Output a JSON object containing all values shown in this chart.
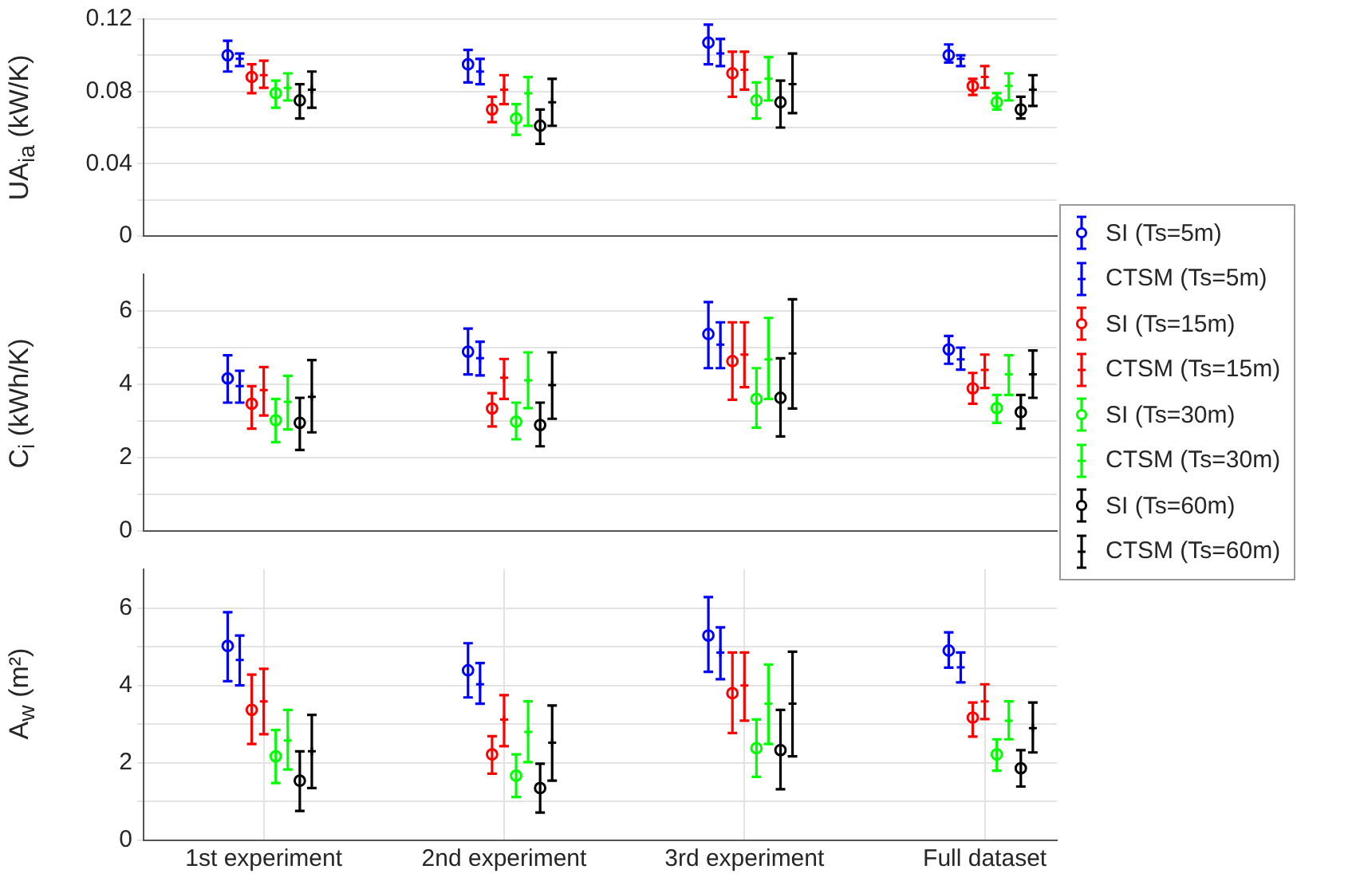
{
  "chart_data": [
    {
      "type": "scatter",
      "ylabel": "UA$_{ia}$ (kW/K)",
      "categories": [
        null,
        null,
        null,
        null
      ],
      "ylim": [
        0,
        0.12
      ],
      "yticks": [
        0,
        {
          "value": 0.02,
          "label": null
        },
        0.04,
        {
          "value": 0.06,
          "label": null
        },
        0.08,
        {
          "value": 0.1,
          "label": null
        },
        0.12
      ],
      "grid": "y",
      "tick_labels": "y",
      "series": [
        {
          "color": "#0000ff",
          "marker": "circle",
          "values": [
            0.1,
            0.095,
            0.107,
            0.1
          ],
          "errors": [
            [
              0.091,
              0.108
            ],
            [
              0.085,
              0.103
            ],
            [
              0.095,
              0.117
            ],
            [
              0.096,
              0.106
            ]
          ]
        },
        {
          "color": "#0000ff",
          "marker": "cross",
          "values": [
            0.098,
            0.091,
            0.101,
            0.098
          ],
          "errors": [
            [
              0.094,
              0.101
            ],
            [
              0.084,
              0.098
            ],
            [
              0.094,
              0.109
            ],
            [
              0.094,
              0.1
            ]
          ]
        },
        {
          "color": "#ff0000",
          "marker": "circle",
          "values": [
            0.088,
            0.07,
            0.09,
            0.083
          ],
          "errors": [
            [
              0.079,
              0.095
            ],
            [
              0.063,
              0.077
            ],
            [
              0.077,
              0.102
            ],
            [
              0.078,
              0.087
            ]
          ]
        },
        {
          "color": "#ff0000",
          "marker": "cross",
          "values": [
            0.089,
            0.081,
            0.092,
            0.088
          ],
          "errors": [
            [
              0.082,
              0.097
            ],
            [
              0.073,
              0.089
            ],
            [
              0.081,
              0.102
            ],
            [
              0.082,
              0.094
            ]
          ]
        },
        {
          "color": "#00ff00",
          "marker": "circle",
          "values": [
            0.079,
            0.065,
            0.075,
            0.074
          ],
          "errors": [
            [
              0.071,
              0.086
            ],
            [
              0.056,
              0.073
            ],
            [
              0.065,
              0.085
            ],
            [
              0.07,
              0.079
            ]
          ]
        },
        {
          "color": "#00ff00",
          "marker": "cross",
          "values": [
            0.082,
            0.079,
            0.087,
            0.083
          ],
          "errors": [
            [
              0.075,
              0.09
            ],
            [
              0.061,
              0.088
            ],
            [
              0.075,
              0.099
            ],
            [
              0.075,
              0.09
            ]
          ]
        },
        {
          "color": "#000000",
          "marker": "circle",
          "values": [
            0.075,
            0.061,
            0.074,
            0.07
          ],
          "errors": [
            [
              0.065,
              0.084
            ],
            [
              0.051,
              0.07
            ],
            [
              0.06,
              0.086
            ],
            [
              0.065,
              0.077
            ]
          ]
        },
        {
          "color": "#000000",
          "marker": "cross",
          "values": [
            0.081,
            0.074,
            0.084,
            0.081
          ],
          "errors": [
            [
              0.071,
              0.091
            ],
            [
              0.061,
              0.087
            ],
            [
              0.068,
              0.101
            ],
            [
              0.072,
              0.089
            ]
          ]
        }
      ]
    },
    {
      "type": "scatter",
      "ylabel": "C$_{i}$ (kWh/K)",
      "categories": [
        null,
        null,
        null,
        null
      ],
      "ylim": [
        0,
        7
      ],
      "yticks": [
        0,
        {
          "value": 1,
          "label": null
        },
        2,
        {
          "value": 3,
          "label": null
        },
        4,
        {
          "value": 5,
          "label": null
        },
        6
      ],
      "grid": "y",
      "tick_labels": "y",
      "legend": "right",
      "series": [
        {
          "name": "SI (Ts=5m)",
          "color": "#0000ff",
          "marker": "circle",
          "values": [
            4.16,
            4.89,
            5.37,
            4.95
          ],
          "errors": [
            [
              3.5,
              4.79
            ],
            [
              4.27,
              5.52
            ],
            [
              4.44,
              6.24
            ],
            [
              4.56,
              5.32
            ]
          ]
        },
        {
          "name": "CTSM (Ts=5m)",
          "color": "#0000ff",
          "marker": "cross",
          "values": [
            3.95,
            4.71,
            5.08,
            4.68
          ],
          "errors": [
            [
              3.5,
              4.37
            ],
            [
              4.24,
              5.16
            ],
            [
              4.44,
              5.69
            ],
            [
              4.4,
              5.0
            ]
          ]
        },
        {
          "name": "SI (Ts=15m)",
          "color": "#ff0000",
          "marker": "circle",
          "values": [
            3.47,
            3.34,
            4.63,
            3.89
          ],
          "errors": [
            [
              2.79,
              3.95
            ],
            [
              2.85,
              3.76
            ],
            [
              3.58,
              5.69
            ],
            [
              3.47,
              4.31
            ]
          ]
        },
        {
          "name": "CTSM (Ts=15m)",
          "color": "#ff0000",
          "marker": "cross",
          "values": [
            3.84,
            4.18,
            4.81,
            4.39
          ],
          "errors": [
            [
              3.15,
              4.47
            ],
            [
              3.6,
              4.69
            ],
            [
              3.92,
              5.69
            ],
            [
              3.9,
              4.81
            ]
          ]
        },
        {
          "name": "SI (Ts=30m)",
          "color": "#00ff00",
          "marker": "circle",
          "values": [
            3.02,
            2.98,
            3.6,
            3.35
          ],
          "errors": [
            [
              2.42,
              3.6
            ],
            [
              2.5,
              3.5
            ],
            [
              2.82,
              4.44
            ],
            [
              2.95,
              3.71
            ]
          ]
        },
        {
          "name": "CTSM (Ts=30m)",
          "color": "#00ff00",
          "marker": "cross",
          "values": [
            3.52,
            4.11,
            4.68,
            4.27
          ],
          "errors": [
            [
              2.77,
              4.23
            ],
            [
              3.35,
              4.87
            ],
            [
              3.6,
              5.81
            ],
            [
              3.71,
              4.79
            ]
          ]
        },
        {
          "name": "SI (Ts=60m)",
          "color": "#000000",
          "marker": "circle",
          "values": [
            2.95,
            2.89,
            3.63,
            3.24
          ],
          "errors": [
            [
              2.21,
              3.63
            ],
            [
              2.31,
              3.5
            ],
            [
              2.58,
              4.71
            ],
            [
              2.79,
              3.71
            ]
          ]
        },
        {
          "name": "CTSM (Ts=60m)",
          "color": "#000000",
          "marker": "cross",
          "values": [
            3.66,
            3.98,
            4.84,
            4.27
          ],
          "errors": [
            [
              2.69,
              4.66
            ],
            [
              3.06,
              4.87
            ],
            [
              3.34,
              6.32
            ],
            [
              3.63,
              4.92
            ]
          ]
        }
      ]
    },
    {
      "type": "scatter",
      "ylabel": "A$_{w}$ (m²)",
      "categories": [
        "1st experiment",
        "2nd experiment",
        "3rd experiment",
        "Full dataset"
      ],
      "ylim": [
        0,
        7
      ],
      "yticks": [
        0,
        {
          "value": 1,
          "label": null
        },
        2,
        {
          "value": 3,
          "label": null
        },
        4,
        {
          "value": 5,
          "label": null
        },
        6
      ],
      "grid": true,
      "series": [
        {
          "color": "#0000ff",
          "marker": "circle",
          "values": [
            5.02,
            4.39,
            5.29,
            4.9
          ],
          "errors": [
            [
              4.11,
              5.89
            ],
            [
              3.69,
              5.09
            ],
            [
              4.35,
              6.28
            ],
            [
              4.46,
              5.37
            ]
          ]
        },
        {
          "color": "#0000ff",
          "marker": "cross",
          "values": [
            4.66,
            4.03,
            4.85,
            4.47
          ],
          "errors": [
            [
              4.0,
              5.29
            ],
            [
              3.53,
              4.58
            ],
            [
              4.16,
              5.5
            ],
            [
              4.08,
              4.85
            ]
          ]
        },
        {
          "color": "#ff0000",
          "marker": "circle",
          "values": [
            3.37,
            2.22,
            3.8,
            3.17
          ],
          "errors": [
            [
              2.49,
              4.28
            ],
            [
              1.72,
              2.69
            ],
            [
              2.77,
              4.85
            ],
            [
              2.68,
              3.56
            ]
          ]
        },
        {
          "color": "#ff0000",
          "marker": "cross",
          "values": [
            3.59,
            3.12,
            4.0,
            3.59
          ],
          "errors": [
            [
              2.74,
              4.43
            ],
            [
              2.43,
              3.75
            ],
            [
              3.09,
              4.85
            ],
            [
              3.13,
              4.03
            ]
          ]
        },
        {
          "color": "#00ff00",
          "marker": "circle",
          "values": [
            2.17,
            1.67,
            2.38,
            2.22
          ],
          "errors": [
            [
              1.48,
              2.85
            ],
            [
              1.12,
              2.22
            ],
            [
              1.64,
              3.12
            ],
            [
              1.8,
              2.61
            ]
          ]
        },
        {
          "color": "#00ff00",
          "marker": "cross",
          "values": [
            2.58,
            2.8,
            3.53,
            3.09
          ],
          "errors": [
            [
              1.83,
              3.37
            ],
            [
              2.02,
              3.59
            ],
            [
              2.49,
              4.54
            ],
            [
              2.61,
              3.59
            ]
          ]
        },
        {
          "color": "#000000",
          "marker": "circle",
          "values": [
            1.54,
            1.35,
            2.33,
            1.86
          ],
          "errors": [
            [
              0.76,
              2.3
            ],
            [
              0.72,
              1.98
            ],
            [
              1.32,
              3.37
            ],
            [
              1.39,
              2.33
            ]
          ]
        },
        {
          "color": "#000000",
          "marker": "cross",
          "values": [
            2.3,
            2.52,
            3.53,
            2.9
          ],
          "errors": [
            [
              1.35,
              3.24
            ],
            [
              1.54,
              3.48
            ],
            [
              2.17,
              4.87
            ],
            [
              2.27,
              3.56
            ]
          ]
        }
      ]
    }
  ]
}
